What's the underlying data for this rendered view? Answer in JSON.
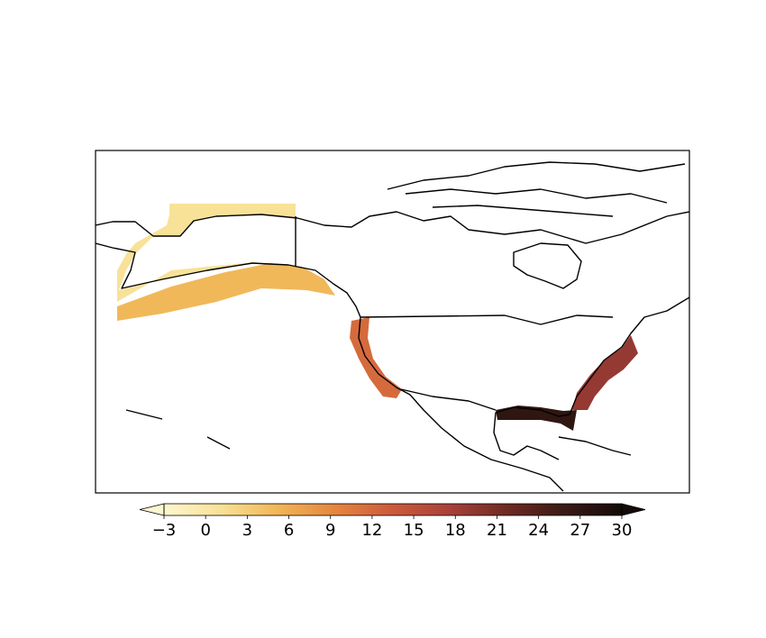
{
  "chart_data": {
    "type": "map",
    "clim": [
      -3,
      30
    ],
    "cticks": [
      {
        "value": -3,
        "label": "−3"
      },
      0,
      3,
      6,
      9,
      12,
      15,
      18,
      21,
      24,
      27,
      30
    ],
    "extend": "both",
    "colormap": [
      "#fdf7cf",
      "#f8e196",
      "#f1b556",
      "#e4853f",
      "#cc5a3c",
      "#a8413a",
      "#6e2a24",
      "#3a1a14",
      "#140a08"
    ],
    "regions": [
      {
        "value": 1
      },
      {
        "value": 5
      },
      {
        "value": 12
      },
      {
        "value": 19
      },
      {
        "value": 27
      }
    ]
  }
}
